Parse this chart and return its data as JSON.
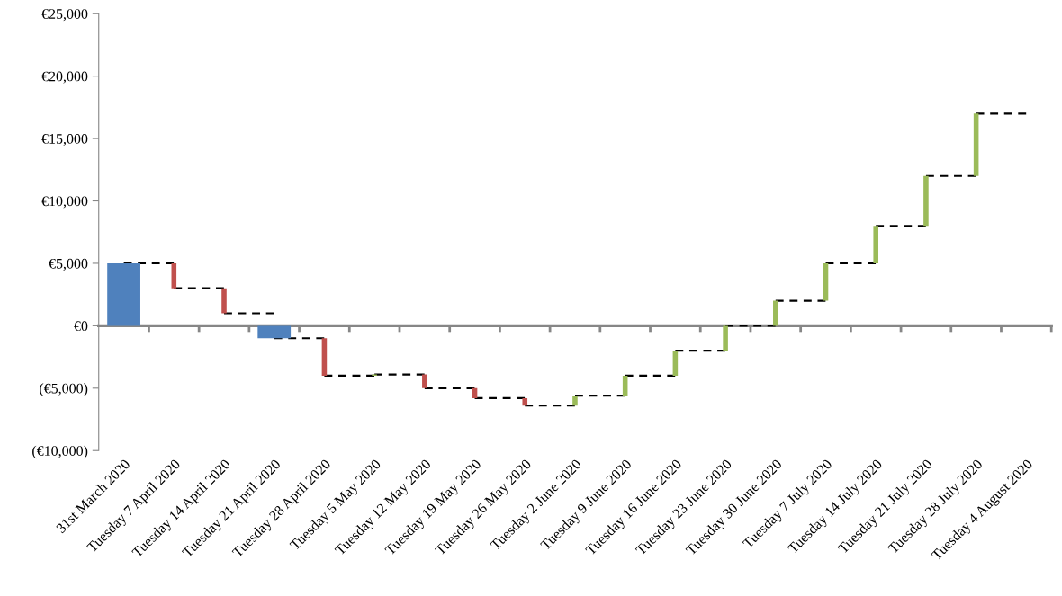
{
  "chart_data": {
    "type": "bar",
    "categories": [
      "31st March 2020",
      "Tuesday 7 April 2020",
      "Tuesday 14 April 2020",
      "Tuesday 21 April 2020",
      "Tuesday 28 April 2020",
      "Tuesday 5 May 2020",
      "Tuesday 12 May 2020",
      "Tuesday 19 May 2020",
      "Tuesday 26 May 2020",
      "Tuesday 2 June 2020",
      "Tuesday 9 June 2020",
      "Tuesday 16 June 2020",
      "Tuesday 23 June 2020",
      "Tuesday 30 June 2020",
      "Tuesday 7 July 2020",
      "Tuesday 14 July 2020",
      "Tuesday 21 July 2020",
      "Tuesday 28 July 2020",
      "Tuesday 4 August 2020"
    ],
    "series": [
      {
        "type": "bar",
        "color": "#4f81bd",
        "values": [
          5000,
          null,
          null,
          -1000,
          null,
          null,
          null,
          null,
          null,
          null,
          null,
          null,
          null,
          null,
          null,
          null,
          null,
          null,
          null
        ],
        "base": [
          0,
          null,
          null,
          0,
          null,
          null,
          null,
          null,
          null,
          null,
          null,
          null,
          null,
          null,
          null,
          null,
          null,
          null,
          null
        ]
      },
      {
        "type": "bar",
        "colors": [
          null,
          "#c0504d",
          "#c0504d",
          null,
          "#c0504d",
          "#9bbb59",
          "#c0504d",
          "#c0504d",
          "#c0504d",
          "#9bbb59",
          "#9bbb59",
          "#9bbb59",
          "#9bbb59",
          "#9bbb59",
          "#9bbb59",
          "#9bbb59",
          "#9bbb59",
          "#9bbb59",
          null
        ],
        "values": [
          null,
          -2000,
          -2000,
          null,
          -3000,
          100,
          -1100,
          -800,
          -600,
          800,
          1600,
          2000,
          2000,
          2000,
          3000,
          3000,
          4000,
          5000,
          null
        ],
        "base": [
          null,
          5000,
          3000,
          null,
          -1000,
          -4000,
          -3900,
          -5000,
          -5800,
          -6400,
          -5600,
          -4000,
          -2000,
          0,
          2000,
          5000,
          8000,
          12000,
          null
        ]
      },
      {
        "type": "step",
        "color": "#000000",
        "line_style": "dashed",
        "values": [
          5000,
          3000,
          1000,
          -1000,
          -4000,
          -3900,
          -5000,
          -5800,
          -6400,
          -5600,
          -4000,
          -2000,
          0,
          2000,
          5000,
          8000,
          12000,
          17000,
          17000
        ]
      }
    ],
    "ylim": [
      -10000,
      25000
    ],
    "yticks": [
      {
        "value": -10000,
        "label": "(€10,000)"
      },
      {
        "value": -5000,
        "label": "(€5,000)"
      },
      {
        "value": 0,
        "label": "€0"
      },
      {
        "value": 5000,
        "label": "€5,000"
      },
      {
        "value": 10000,
        "label": "€10,000"
      },
      {
        "value": 15000,
        "label": "€15,000"
      },
      {
        "value": 20000,
        "label": "€20,000"
      },
      {
        "value": 25000,
        "label": "€25,000"
      }
    ],
    "legend": false
  }
}
